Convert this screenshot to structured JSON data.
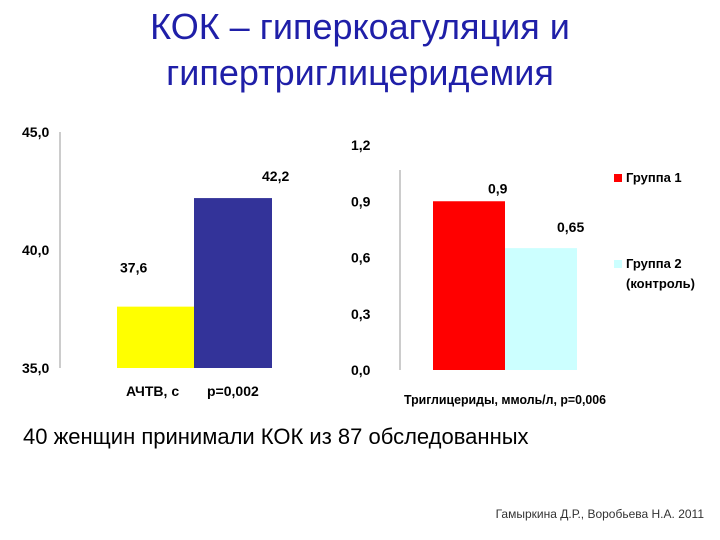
{
  "slide": {
    "title_line1": "КОК – гиперкоагуляция и",
    "title_line2": "гипертриглицеридемия",
    "caption": "40 женщин принимали КОК из 87 обследованных",
    "credit": "Гамыркина Д.Р., Воробьева Н.А. 2011",
    "title_color": "#1f1fa8"
  },
  "chart_data": [
    {
      "type": "bar",
      "categories": [
        "Группа 1",
        "Группа 2 (контроль)"
      ],
      "values": [
        37.6,
        42.2
      ],
      "value_labels": [
        "37,6",
        "42,2"
      ],
      "ylim": [
        35.0,
        45.0
      ],
      "yticks": [
        "35,0",
        "40,0",
        "45,0"
      ],
      "xlabel": "АЧТВ, с",
      "annotation": "p=0,002",
      "colors": [
        "#ffff00",
        "#333399"
      ]
    },
    {
      "type": "bar",
      "categories": [
        "Группа 1",
        "Группа 2 (контроль)"
      ],
      "values": [
        0.9,
        0.65
      ],
      "value_labels": [
        "0,9",
        "0,65"
      ],
      "ylim": [
        0.0,
        1.2
      ],
      "yticks": [
        "0,0",
        "0,3",
        "0,6",
        "0,9",
        "1,2"
      ],
      "xlabel": "Триглицериды, ммоль/л, р=0,006",
      "colors": [
        "#ff0000",
        "#ccffff"
      ],
      "legend": [
        {
          "label": "Группа 1",
          "color": "#ff0000"
        },
        {
          "label": "Группа 2 (контроль)",
          "label_line1": "Группа 2",
          "label_line2": "(контроль)",
          "color": "#ccffff"
        }
      ],
      "legend_position": "right"
    }
  ]
}
